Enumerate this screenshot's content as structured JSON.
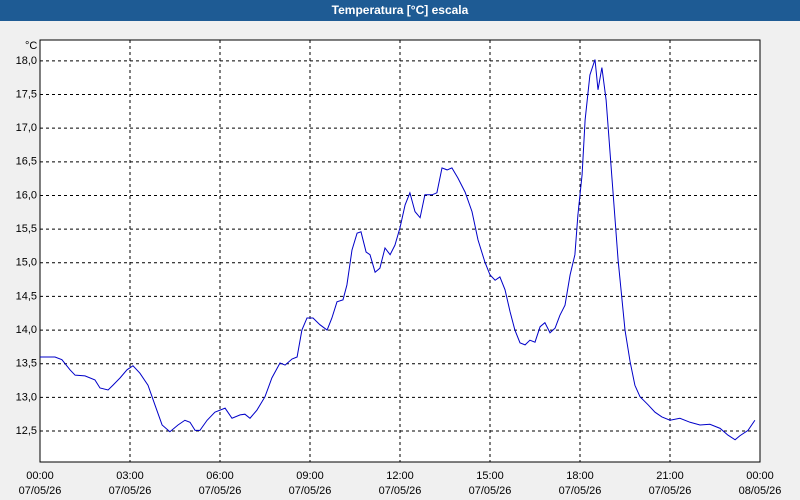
{
  "chart_data": {
    "type": "line",
    "title": "Temperatura [°C] escala",
    "ylabel": "°C",
    "color": "#0000c8",
    "grid": true,
    "xlim": [
      0,
      24
    ],
    "ylim": [
      12.04,
      18.31
    ],
    "xticks": [
      {
        "value": 0,
        "label": "00:00"
      },
      {
        "value": 3,
        "label": "03:00"
      },
      {
        "value": 6,
        "label": "06:00"
      },
      {
        "value": 9,
        "label": "09:00"
      },
      {
        "value": 12,
        "label": "12:00"
      },
      {
        "value": 15,
        "label": "15:00"
      },
      {
        "value": 18,
        "label": "18:00"
      },
      {
        "value": 21,
        "label": "21:00"
      },
      {
        "value": 24,
        "label": "00:00"
      }
    ],
    "xtick_dates": [
      "07/05/26",
      "07/05/26",
      "07/05/26",
      "07/05/26",
      "07/05/26",
      "07/05/26",
      "07/05/26",
      "07/05/26",
      "08/05/26"
    ],
    "yticks": [
      {
        "value": 12.5,
        "label": "12,5"
      },
      {
        "value": 13,
        "label": "13,0"
      },
      {
        "value": 13.5,
        "label": "13,5"
      },
      {
        "value": 14,
        "label": "14,0"
      },
      {
        "value": 14.5,
        "label": "14,5"
      },
      {
        "value": 15,
        "label": "15,0"
      },
      {
        "value": 15.5,
        "label": "15,5"
      },
      {
        "value": 16,
        "label": "16,0"
      },
      {
        "value": 16.5,
        "label": "16,5"
      },
      {
        "value": 17,
        "label": "17,0"
      },
      {
        "value": 17.5,
        "label": "17,5"
      },
      {
        "value": 18,
        "label": "18,0"
      }
    ],
    "x": [
      0,
      0.5,
      0.73,
      1.0,
      1.17,
      1.5,
      1.83,
      2.0,
      2.27,
      2.43,
      2.67,
      2.9,
      3.1,
      3.33,
      3.6,
      3.83,
      4.07,
      4.33,
      4.6,
      4.83,
      5.0,
      5.17,
      5.33,
      5.57,
      5.83,
      6.17,
      6.4,
      6.67,
      6.83,
      7.0,
      7.23,
      7.5,
      7.73,
      8.0,
      8.17,
      8.4,
      8.57,
      8.73,
      8.9,
      9.1,
      9.33,
      9.57,
      9.73,
      9.9,
      10.1,
      10.23,
      10.4,
      10.57,
      10.7,
      10.87,
      11.0,
      11.17,
      11.33,
      11.5,
      11.67,
      11.83,
      12.0,
      12.17,
      12.33,
      12.5,
      12.67,
      12.83,
      13.07,
      13.23,
      13.4,
      13.57,
      13.73,
      13.93,
      14.17,
      14.4,
      14.6,
      14.83,
      15.0,
      15.17,
      15.33,
      15.5,
      15.67,
      15.83,
      16.0,
      16.17,
      16.33,
      16.5,
      16.67,
      16.83,
      17.0,
      17.17,
      17.33,
      17.5,
      17.67,
      17.83,
      17.93,
      18.07,
      18.17,
      18.33,
      18.5,
      18.6,
      18.73,
      18.87,
      19.07,
      19.27,
      19.5,
      19.67,
      19.83,
      20.0,
      20.27,
      20.5,
      20.73,
      21.0,
      21.33,
      21.67,
      22.0,
      22.33,
      22.67,
      22.93,
      23.17,
      23.33,
      23.6,
      23.83
    ],
    "values": [
      13.6,
      13.6,
      13.56,
      13.41,
      13.33,
      13.32,
      13.26,
      13.14,
      13.11,
      13.18,
      13.29,
      13.41,
      13.47,
      13.36,
      13.18,
      12.89,
      12.59,
      12.49,
      12.59,
      12.66,
      12.63,
      12.51,
      12.51,
      12.66,
      12.78,
      12.84,
      12.69,
      12.74,
      12.75,
      12.69,
      12.81,
      13.01,
      13.29,
      13.51,
      13.48,
      13.57,
      13.6,
      14.0,
      14.18,
      14.18,
      14.08,
      14.0,
      14.18,
      14.42,
      14.45,
      14.67,
      15.19,
      15.44,
      15.46,
      15.16,
      15.12,
      14.86,
      14.92,
      15.22,
      15.12,
      15.26,
      15.52,
      15.86,
      16.04,
      15.76,
      15.67,
      16.01,
      16.01,
      16.04,
      16.41,
      16.38,
      16.41,
      16.26,
      16.05,
      15.76,
      15.34,
      15.01,
      14.82,
      14.74,
      14.79,
      14.6,
      14.27,
      14.0,
      13.81,
      13.78,
      13.85,
      13.82,
      14.05,
      14.11,
      13.96,
      14.03,
      14.22,
      14.37,
      14.82,
      15.12,
      15.71,
      16.31,
      17.12,
      17.79,
      18.02,
      17.57,
      17.9,
      17.42,
      16.23,
      15.04,
      14.0,
      13.53,
      13.18,
      13.01,
      12.89,
      12.78,
      12.71,
      12.66,
      12.69,
      12.63,
      12.59,
      12.6,
      12.54,
      12.44,
      12.37,
      12.43,
      12.51,
      12.66
    ]
  }
}
